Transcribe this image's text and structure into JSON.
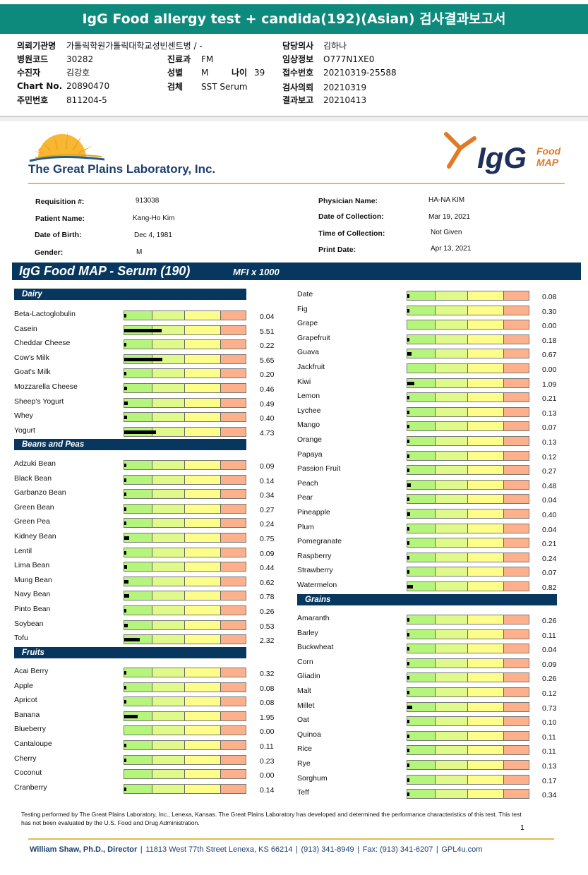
{
  "report_title": "IgG Food allergy test + candida(192)(Asian) 검사결과보고서",
  "header": {
    "institution": {
      "label": "의뢰기관명",
      "value": "가톨릭학원가톨릭대학교성빈센트병 / -"
    },
    "hospital_code": {
      "label": "병원코드",
      "value": "30282"
    },
    "patient_name": {
      "label": "수진자",
      "value": "김강호"
    },
    "chart_no": {
      "label": "Chart No.",
      "value": "20890470"
    },
    "resident_no": {
      "label": "주민번호",
      "value": "811204-5"
    },
    "department": {
      "label": "진료과",
      "value": "FM"
    },
    "sex": {
      "label": "성별",
      "value": "M"
    },
    "age": {
      "label": "나이",
      "value": "39"
    },
    "specimen": {
      "label": "검체",
      "value": "SST Serum"
    },
    "doctor": {
      "label": "담당의사",
      "value": "김하나"
    },
    "approval": {
      "label": "임상정보",
      "value": "O777N1XE0"
    },
    "accession_no": {
      "label": "접수번호",
      "value": "20210319-25588"
    },
    "request_date": {
      "label": "검사의뢰",
      "value": "20210319"
    },
    "report_date": {
      "label": "결과보고",
      "value": "20210413"
    }
  },
  "lab": {
    "name": "The Great Plains Laboratory, Inc.",
    "product_logo": "IgG",
    "product_sub1": "Food",
    "product_sub2": "MAP"
  },
  "patient": {
    "requisition": {
      "label": "Requisition #:",
      "value": "913038"
    },
    "name": {
      "label": "Patient Name:",
      "value": "Kang-Ho Kim"
    },
    "dob": {
      "label": "Date of Birth:",
      "value": "Dec 4, 1981"
    },
    "gender": {
      "label": "Gender:",
      "value": "M"
    },
    "physician": {
      "label": "Physician Name:",
      "value": "HA-NA KIM"
    },
    "collection_date": {
      "label": "Date of Collection:",
      "value": "Mar 19, 2021"
    },
    "collection_time": {
      "label": "Time of Collection:",
      "value": "Not Given"
    },
    "print_date": {
      "label": "Print Date:",
      "value": "Apr 13, 2021"
    }
  },
  "map_title": "IgG Food MAP - Serum (190)",
  "map_unit": "MFI x 1000",
  "scale_max": 18,
  "sections": [
    {
      "name": "Dairy",
      "items": [
        {
          "name": "Beta-Lactoglobulin",
          "value": "0.04"
        },
        {
          "name": "Casein",
          "value": "5.51"
        },
        {
          "name": "Cheddar Cheese",
          "value": "0.22"
        },
        {
          "name": "Cow's Milk",
          "value": "5.65"
        },
        {
          "name": "Goat's Milk",
          "value": "0.20"
        },
        {
          "name": "Mozzarella Cheese",
          "value": "0.46"
        },
        {
          "name": "Sheep's Yogurt",
          "value": "0.49"
        },
        {
          "name": "Whey",
          "value": "0.40"
        },
        {
          "name": "Yogurt",
          "value": "4.73"
        }
      ]
    },
    {
      "name": "Beans and Peas",
      "items": [
        {
          "name": "Adzuki Bean",
          "value": "0.09"
        },
        {
          "name": "Black Bean",
          "value": "0.14"
        },
        {
          "name": "Garbanzo Bean",
          "value": "0.34"
        },
        {
          "name": "Green Bean",
          "value": "0.27"
        },
        {
          "name": "Green Pea",
          "value": "0.24"
        },
        {
          "name": "Kidney Bean",
          "value": "0.75"
        },
        {
          "name": "Lentil",
          "value": "0.09"
        },
        {
          "name": "Lima Bean",
          "value": "0.44"
        },
        {
          "name": "Mung Bean",
          "value": "0.62"
        },
        {
          "name": "Navy Bean",
          "value": "0.78"
        },
        {
          "name": "Pinto Bean",
          "value": "0.26"
        },
        {
          "name": "Soybean",
          "value": "0.53"
        },
        {
          "name": "Tofu",
          "value": "2.32"
        }
      ]
    },
    {
      "name": "Fruits",
      "items": [
        {
          "name": "Acai Berry",
          "value": "0.32"
        },
        {
          "name": "Apple",
          "value": "0.08"
        },
        {
          "name": "Apricot",
          "value": "0.08"
        },
        {
          "name": "Banana",
          "value": "1.95"
        },
        {
          "name": "Blueberry",
          "value": "0.00"
        },
        {
          "name": "Cantaloupe",
          "value": "0.11"
        },
        {
          "name": "Cherry",
          "value": "0.23"
        },
        {
          "name": "Coconut",
          "value": "0.00"
        },
        {
          "name": "Cranberry",
          "value": "0.14"
        }
      ]
    },
    {
      "name": "",
      "items": [
        {
          "name": "Date",
          "value": "0.08"
        },
        {
          "name": "Fig",
          "value": "0.30"
        },
        {
          "name": "Grape",
          "value": "0.00"
        },
        {
          "name": "Grapefruit",
          "value": "0.18"
        },
        {
          "name": "Guava",
          "value": "0.67"
        },
        {
          "name": "Jackfruit",
          "value": "0.00"
        },
        {
          "name": "Kiwi",
          "value": "1.09"
        },
        {
          "name": "Lemon",
          "value": "0.21"
        },
        {
          "name": "Lychee",
          "value": "0.13"
        },
        {
          "name": "Mango",
          "value": "0.07"
        },
        {
          "name": "Orange",
          "value": "0.13"
        },
        {
          "name": "Papaya",
          "value": "0.12"
        },
        {
          "name": "Passion Fruit",
          "value": "0.27"
        },
        {
          "name": "Peach",
          "value": "0.48"
        },
        {
          "name": "Pear",
          "value": "0.04"
        },
        {
          "name": "Pineapple",
          "value": "0.40"
        },
        {
          "name": "Plum",
          "value": "0.04"
        },
        {
          "name": "Pomegranate",
          "value": "0.21"
        },
        {
          "name": "Raspberry",
          "value": "0.24"
        },
        {
          "name": "Strawberry",
          "value": "0.07"
        },
        {
          "name": "Watermelon",
          "value": "0.82"
        }
      ]
    },
    {
      "name": "Grains",
      "items": [
        {
          "name": "Amaranth",
          "value": "0.26"
        },
        {
          "name": "Barley",
          "value": "0.11"
        },
        {
          "name": "Buckwheat",
          "value": "0.04"
        },
        {
          "name": "Corn",
          "value": "0.09"
        },
        {
          "name": "Gliadin",
          "value": "0.26"
        },
        {
          "name": "Malt",
          "value": "0.12"
        },
        {
          "name": "Millet",
          "value": "0.73"
        },
        {
          "name": "Oat",
          "value": "0.10"
        },
        {
          "name": "Quinoa",
          "value": "0.11"
        },
        {
          "name": "Rice",
          "value": "0.11"
        },
        {
          "name": "Rye",
          "value": "0.13"
        },
        {
          "name": "Sorghum",
          "value": "0.17"
        },
        {
          "name": "Teff",
          "value": "0.34"
        }
      ]
    }
  ],
  "footer": {
    "disclaimer": "Testing performed by The Great Plains Laboratory, Inc., Lenexa, Kansas.  The Great Plains Laboratory has developed and determined the performance characteristics of this test.  This test has not been evaluated by the U.S.  Food and Drug Administration.",
    "page": "1",
    "director": "William Shaw, Ph.D., Director",
    "address": "11813 West 77th Street Lenexa, KS 66214",
    "phone": "(913) 341-8949",
    "fax": "Fax: (913) 341-6207",
    "web": "GPL4u.com"
  }
}
